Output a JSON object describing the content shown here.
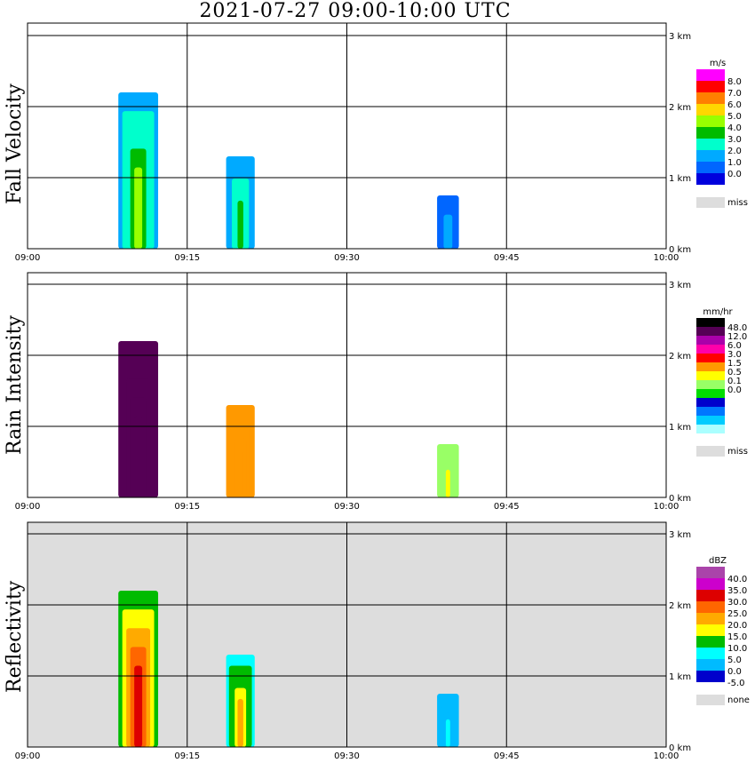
{
  "title": "2021-07-27   09:00-10:00 UTC",
  "colors": {
    "missing": "#dddddd",
    "grid": "#000000",
    "background": "#ffffff"
  },
  "chart_data": [
    {
      "type": "heatmap",
      "title": "Fall Velocity",
      "ylabel": "Fall Velocity",
      "xlim": [
        0,
        60
      ],
      "x_ticks": [
        "09:00",
        "09:15",
        "09:30",
        "09:45",
        "10:00"
      ],
      "ylim": [
        0,
        3.2
      ],
      "y_ticks": [
        "0 km",
        "1 km",
        "2 km",
        "3 km"
      ],
      "legend": {
        "unit": "m/s",
        "labels": [
          "8.0",
          "7.0",
          "6.0",
          "5.0",
          "4.0",
          "3.0",
          "2.0",
          "1.0",
          "0.0"
        ],
        "colors": [
          "#ff00ff",
          "#ff0000",
          "#ff7f00",
          "#ffd700",
          "#99ff00",
          "#00bb00",
          "#00ffcc",
          "#00aaff",
          "#0066ff",
          "#0000dd"
        ],
        "missing_label": "miss"
      },
      "features": [
        {
          "x": 10.4,
          "h": 2.2,
          "value": 4.0
        },
        {
          "x": 20.0,
          "h": 1.3,
          "value": 3.0
        },
        {
          "x": 39.5,
          "h": 0.75,
          "value": 1.2
        }
      ],
      "background": "#ffffff"
    },
    {
      "type": "heatmap",
      "title": "Rain Intensity",
      "ylabel": "Rain Intensity",
      "xlim": [
        0,
        60
      ],
      "x_ticks": [
        "09:00",
        "09:15",
        "09:30",
        "09:45",
        "10:00"
      ],
      "ylim": [
        0,
        3.2
      ],
      "y_ticks": [
        "0 km",
        "1 km",
        "2 km",
        "3 km"
      ],
      "legend": {
        "unit": "mm/hr",
        "labels": [
          "48.0",
          "12.0",
          "6.0",
          "3.0",
          "1.5",
          "0.5",
          "0.1",
          "0.0"
        ],
        "colors": [
          "#000000",
          "#550055",
          "#aa00aa",
          "#ff00aa",
          "#ff0000",
          "#ff9900",
          "#ffff00",
          "#99ff66",
          "#00dd00",
          "#0000cc",
          "#0077ff",
          "#00ccff",
          "#aaffff"
        ],
        "missing_label": "miss"
      },
      "features": [
        {
          "x": 10.4,
          "h": 2.2,
          "value": 30.0
        },
        {
          "x": 20.0,
          "h": 1.3,
          "value": 1.2
        },
        {
          "x": 39.5,
          "h": 0.75,
          "value": 0.1
        }
      ],
      "background": "#ffffff"
    },
    {
      "type": "heatmap",
      "title": "Reflectivity",
      "ylabel": "Reflectivity",
      "xlim": [
        0,
        60
      ],
      "x_ticks": [
        "09:00",
        "09:15",
        "09:30",
        "09:45",
        "10:00"
      ],
      "ylim": [
        0,
        3.2
      ],
      "y_ticks": [
        "0 km",
        "1 km",
        "2 km",
        "3 km"
      ],
      "legend": {
        "unit": "dBZ",
        "labels": [
          "40.0",
          "35.0",
          "30.0",
          "25.0",
          "20.0",
          "15.0",
          "10.0",
          "5.0",
          "0.0",
          "-5.0"
        ],
        "colors": [
          "#aa44aa",
          "#cc00cc",
          "#dd0000",
          "#ff6600",
          "#ffaa00",
          "#ffff00",
          "#00bb00",
          "#00ffff",
          "#00bbff",
          "#0000cc"
        ],
        "missing_label": "none"
      },
      "features": [
        {
          "x": 10.4,
          "h": 2.2,
          "value": 32.0
        },
        {
          "x": 20.0,
          "h": 1.3,
          "value": 20.0
        },
        {
          "x": 39.5,
          "h": 0.75,
          "value": 5.0
        }
      ],
      "background": "#dddddd"
    }
  ]
}
